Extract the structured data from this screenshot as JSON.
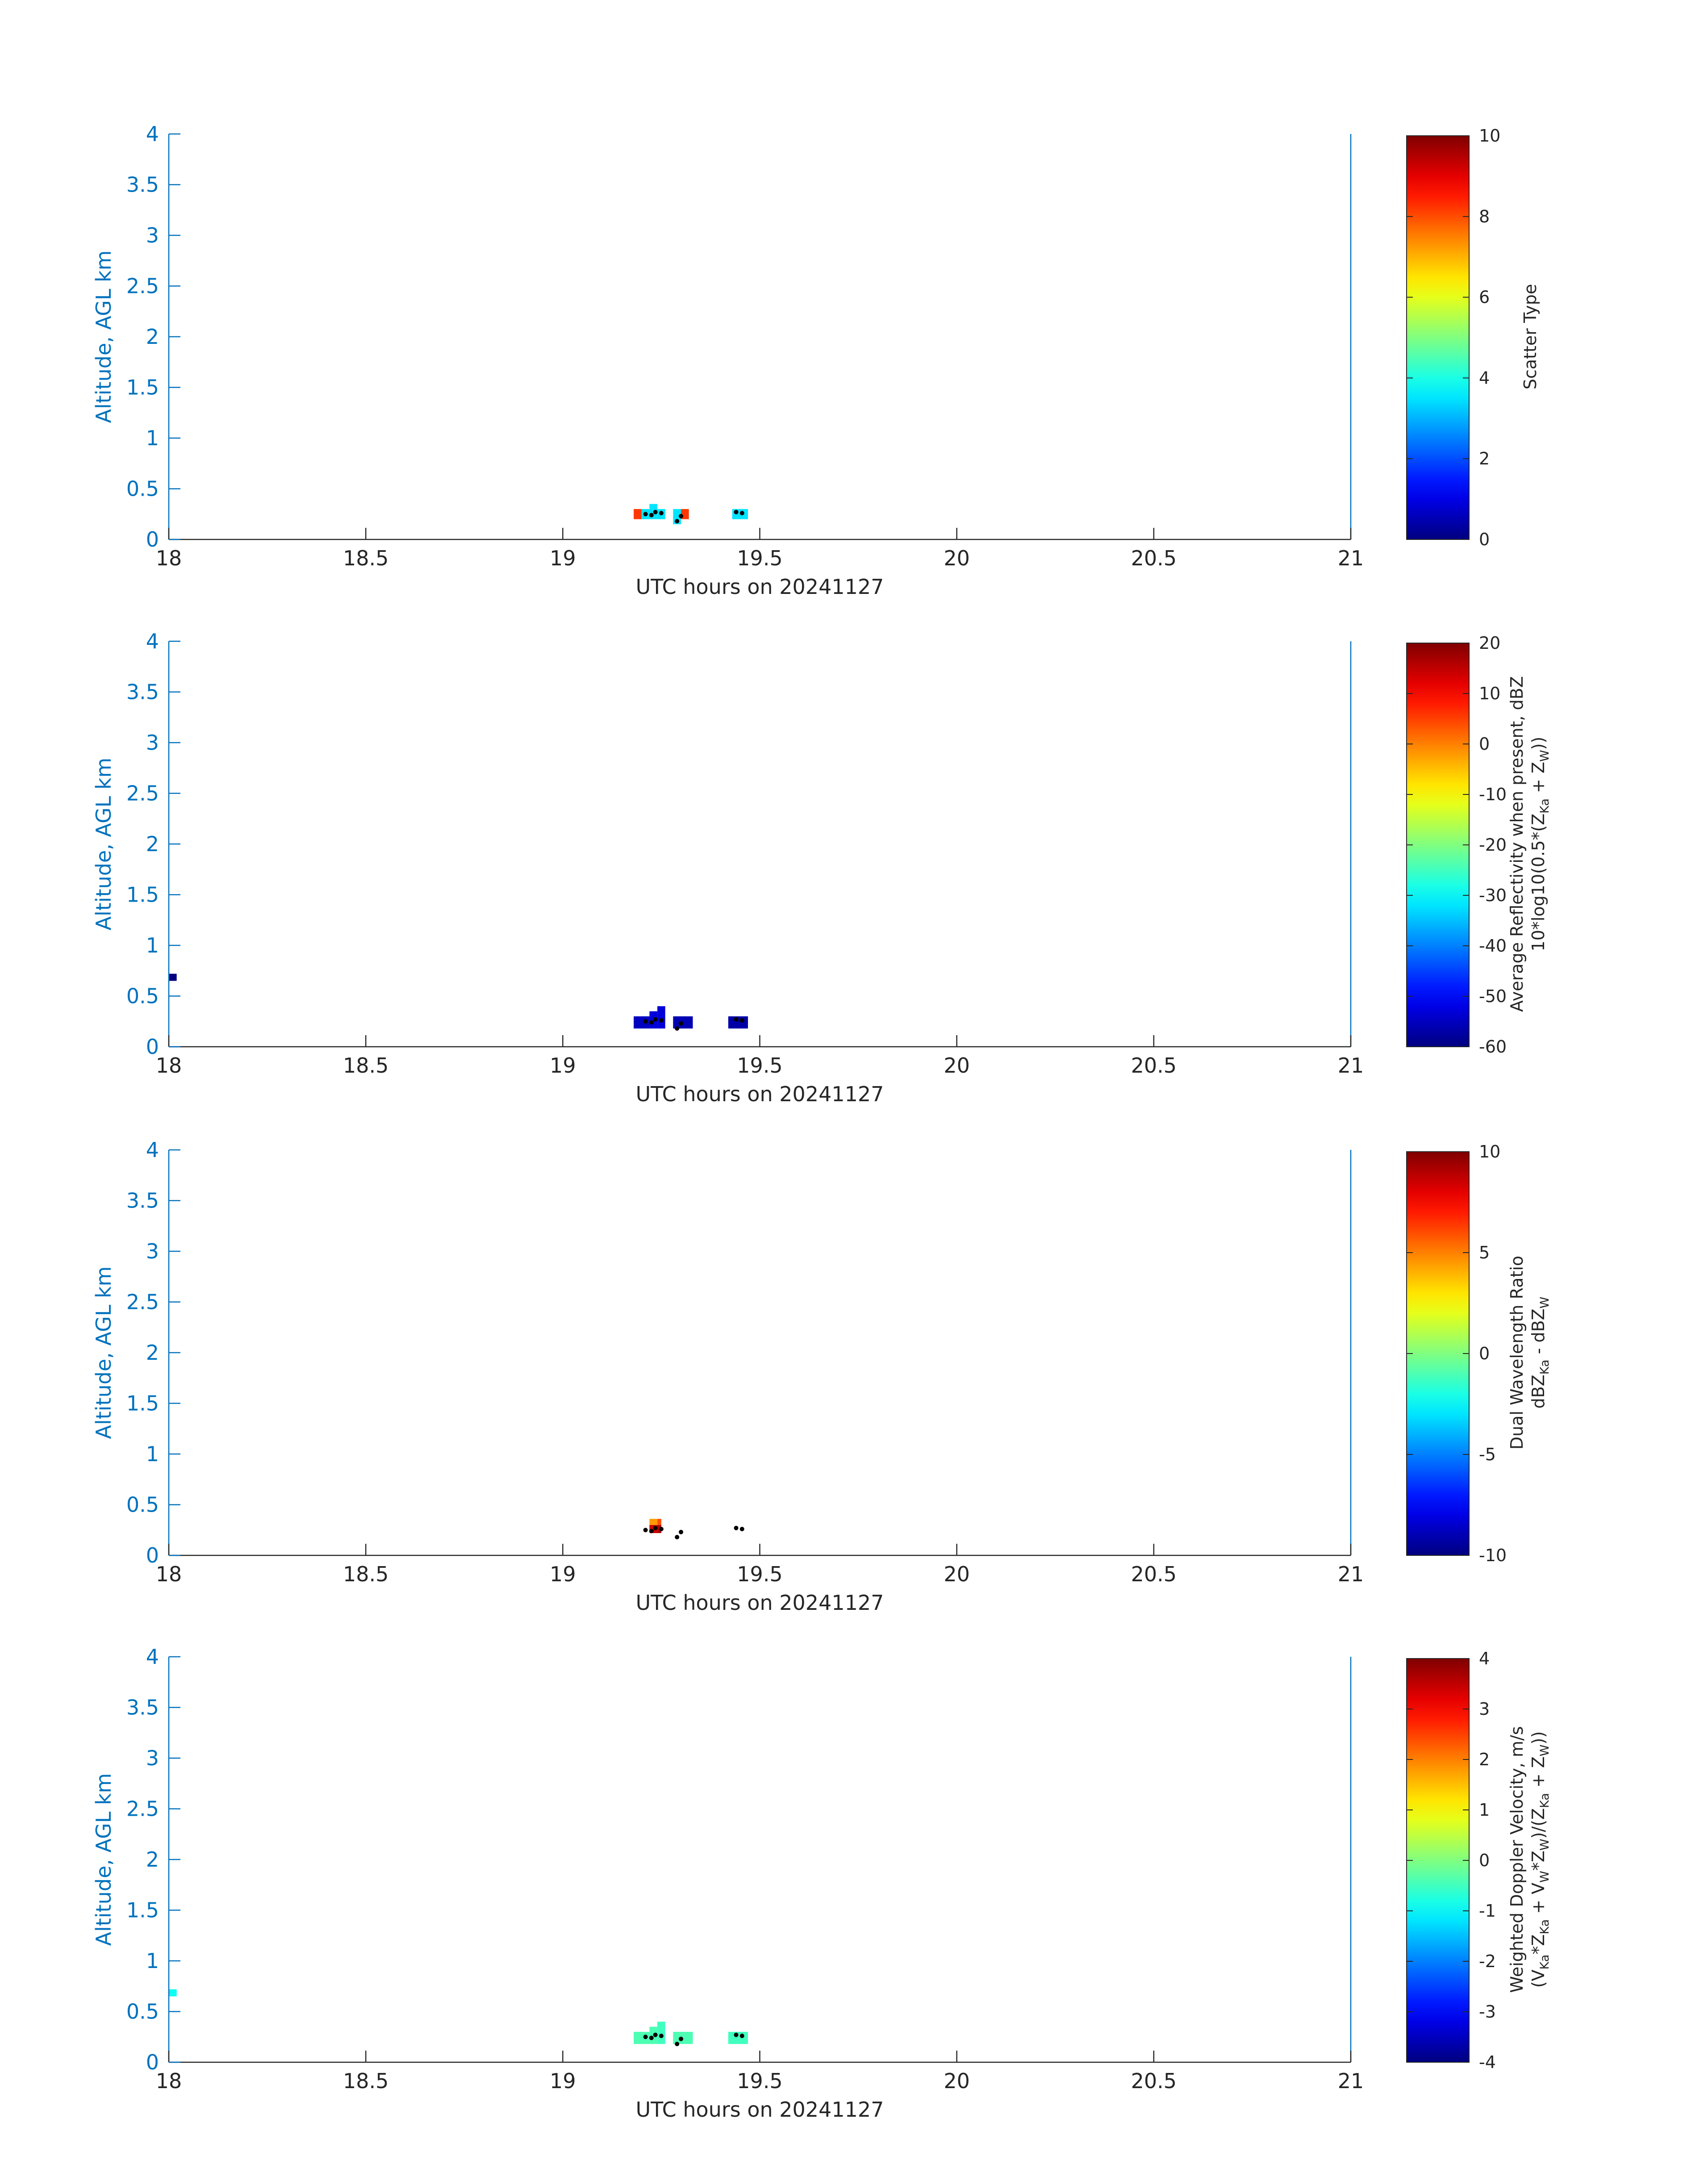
{
  "colors": {
    "axis": "#0072BD",
    "text": "#262626",
    "cbar_edge": "#262626",
    "marker": "#000000"
  },
  "colormap": "jet",
  "chart_data": [
    {
      "type": "heatmap",
      "panel": 1,
      "xlabel": "UTC hours on 20241127",
      "ylabel": "Altitude, AGL km",
      "xlim": [
        18,
        21
      ],
      "ylim": [
        0,
        4
      ],
      "xticks": [
        18,
        18.5,
        19,
        19.5,
        20,
        20.5,
        21
      ],
      "xtick_labels": [
        "18",
        "18.5",
        "19",
        "19.5",
        "20",
        "20.5",
        "21"
      ],
      "yticks": [
        0,
        0.5,
        1,
        1.5,
        2,
        2.5,
        3,
        3.5,
        4
      ],
      "ytick_labels": [
        "0",
        "0.5",
        "1",
        "1.5",
        "2",
        "2.5",
        "3",
        "3.5",
        "4"
      ],
      "colorbar": {
        "label_lines": [
          "Scatter Type"
        ],
        "clim": [
          0,
          10
        ],
        "ticks": [
          0,
          2,
          4,
          6,
          8,
          10
        ],
        "tick_labels": [
          "0",
          "2",
          "4",
          "6",
          "8",
          "10"
        ]
      },
      "cells": [
        {
          "x0": 19.18,
          "x1": 19.2,
          "y0": 0.2,
          "y1": 0.3,
          "v": 8.2
        },
        {
          "x0": 19.2,
          "x1": 19.22,
          "y0": 0.2,
          "y1": 0.3,
          "v": 3.5
        },
        {
          "x0": 19.22,
          "x1": 19.24,
          "y0": 0.2,
          "y1": 0.35,
          "v": 3.5
        },
        {
          "x0": 19.24,
          "x1": 19.26,
          "y0": 0.2,
          "y1": 0.3,
          "v": 3.5
        },
        {
          "x0": 19.28,
          "x1": 19.3,
          "y0": 0.15,
          "y1": 0.3,
          "v": 3.5
        },
        {
          "x0": 19.3,
          "x1": 19.32,
          "y0": 0.2,
          "y1": 0.3,
          "v": 8.2
        },
        {
          "x0": 19.43,
          "x1": 19.47,
          "y0": 0.2,
          "y1": 0.3,
          "v": 3.5
        }
      ],
      "markers": [
        {
          "x": 19.21,
          "y": 0.25
        },
        {
          "x": 19.225,
          "y": 0.24
        },
        {
          "x": 19.235,
          "y": 0.27
        },
        {
          "x": 19.25,
          "y": 0.26
        },
        {
          "x": 19.29,
          "y": 0.18
        },
        {
          "x": 19.3,
          "y": 0.23
        },
        {
          "x": 19.44,
          "y": 0.27
        },
        {
          "x": 19.455,
          "y": 0.26
        }
      ]
    },
    {
      "type": "heatmap",
      "panel": 2,
      "xlabel": "UTC hours on 20241127",
      "ylabel": "Altitude, AGL km",
      "xlim": [
        18,
        21
      ],
      "ylim": [
        0,
        4
      ],
      "xticks": [
        18,
        18.5,
        19,
        19.5,
        20,
        20.5,
        21
      ],
      "xtick_labels": [
        "18",
        "18.5",
        "19",
        "19.5",
        "20",
        "20.5",
        "21"
      ],
      "yticks": [
        0,
        0.5,
        1,
        1.5,
        2,
        2.5,
        3,
        3.5,
        4
      ],
      "ytick_labels": [
        "0",
        "0.5",
        "1",
        "1.5",
        "2",
        "2.5",
        "3",
        "3.5",
        "4"
      ],
      "colorbar": {
        "label_lines": [
          "Average Reflectivity when present, dBZ",
          "10*log10(0.5*(Z_Ka + Z_W))"
        ],
        "clim": [
          -60,
          20
        ],
        "ticks": [
          -60,
          -50,
          -40,
          -30,
          -20,
          -10,
          0,
          10,
          20
        ],
        "tick_labels": [
          "-60",
          "-50",
          "-40",
          "-30",
          "-20",
          "-10",
          "0",
          "10",
          "20"
        ]
      },
      "cells": [
        {
          "x0": 18.0,
          "x1": 18.02,
          "y0": 0.65,
          "y1": 0.72,
          "v": -60
        },
        {
          "x0": 19.18,
          "x1": 19.22,
          "y0": 0.18,
          "y1": 0.3,
          "v": -55
        },
        {
          "x0": 19.22,
          "x1": 19.24,
          "y0": 0.18,
          "y1": 0.35,
          "v": -53
        },
        {
          "x0": 19.24,
          "x1": 19.26,
          "y0": 0.18,
          "y1": 0.4,
          "v": -53
        },
        {
          "x0": 19.28,
          "x1": 19.33,
          "y0": 0.18,
          "y1": 0.3,
          "v": -56
        },
        {
          "x0": 19.42,
          "x1": 19.47,
          "y0": 0.18,
          "y1": 0.3,
          "v": -57
        }
      ],
      "markers": [
        {
          "x": 19.21,
          "y": 0.25
        },
        {
          "x": 19.225,
          "y": 0.24
        },
        {
          "x": 19.235,
          "y": 0.27
        },
        {
          "x": 19.25,
          "y": 0.26
        },
        {
          "x": 19.29,
          "y": 0.18
        },
        {
          "x": 19.3,
          "y": 0.23
        },
        {
          "x": 19.44,
          "y": 0.27
        },
        {
          "x": 19.455,
          "y": 0.26
        }
      ]
    },
    {
      "type": "heatmap",
      "panel": 3,
      "xlabel": "UTC hours on 20241127",
      "ylabel": "Altitude, AGL km",
      "xlim": [
        18,
        21
      ],
      "ylim": [
        0,
        4
      ],
      "xticks": [
        18,
        18.5,
        19,
        19.5,
        20,
        20.5,
        21
      ],
      "xtick_labels": [
        "18",
        "18.5",
        "19",
        "19.5",
        "20",
        "20.5",
        "21"
      ],
      "yticks": [
        0,
        0.5,
        1,
        1.5,
        2,
        2.5,
        3,
        3.5,
        4
      ],
      "ytick_labels": [
        "0",
        "0.5",
        "1",
        "1.5",
        "2",
        "2.5",
        "3",
        "3.5",
        "4"
      ],
      "colorbar": {
        "label_lines": [
          "Dual Wavelength Ratio",
          "dBZ_Ka - dBZ_W"
        ],
        "clim": [
          -10,
          10
        ],
        "ticks": [
          -10,
          -5,
          0,
          5,
          10
        ],
        "tick_labels": [
          "-10",
          "-5",
          "0",
          "5",
          "10"
        ]
      },
      "cells": [
        {
          "x0": 19.22,
          "x1": 19.24,
          "y0": 0.22,
          "y1": 0.3,
          "v": 8.5
        },
        {
          "x0": 19.22,
          "x1": 19.24,
          "y0": 0.3,
          "y1": 0.36,
          "v": 4.5
        },
        {
          "x0": 19.24,
          "x1": 19.25,
          "y0": 0.22,
          "y1": 0.3,
          "v": 9.0
        },
        {
          "x0": 19.24,
          "x1": 19.25,
          "y0": 0.3,
          "y1": 0.36,
          "v": 6.0
        }
      ],
      "markers": [
        {
          "x": 19.21,
          "y": 0.25
        },
        {
          "x": 19.225,
          "y": 0.24
        },
        {
          "x": 19.235,
          "y": 0.27
        },
        {
          "x": 19.25,
          "y": 0.26
        },
        {
          "x": 19.29,
          "y": 0.18
        },
        {
          "x": 19.3,
          "y": 0.23
        },
        {
          "x": 19.44,
          "y": 0.27
        },
        {
          "x": 19.455,
          "y": 0.26
        }
      ]
    },
    {
      "type": "heatmap",
      "panel": 4,
      "xlabel": "UTC hours on 20241127",
      "ylabel": "Altitude, AGL km",
      "xlim": [
        18,
        21
      ],
      "ylim": [
        0,
        4
      ],
      "xticks": [
        18,
        18.5,
        19,
        19.5,
        20,
        20.5,
        21
      ],
      "xtick_labels": [
        "18",
        "18.5",
        "19",
        "19.5",
        "20",
        "20.5",
        "21"
      ],
      "yticks": [
        0,
        0.5,
        1,
        1.5,
        2,
        2.5,
        3,
        3.5,
        4
      ],
      "ytick_labels": [
        "0",
        "0.5",
        "1",
        "1.5",
        "2",
        "2.5",
        "3",
        "3.5",
        "4"
      ],
      "colorbar": {
        "label_lines": [
          "Weighted Doppler Velocity, m/s",
          "(V_Ka*Z_Ka + V_W*Z_W)/(Z_Ka + Z_W))"
        ],
        "clim": [
          -4,
          4
        ],
        "ticks": [
          -4,
          -3,
          -2,
          -1,
          0,
          1,
          2,
          3,
          4
        ],
        "tick_labels": [
          "-4",
          "-3",
          "-2",
          "-1",
          "0",
          "1",
          "2",
          "3",
          "4"
        ]
      },
      "cells": [
        {
          "x0": 18.0,
          "x1": 18.02,
          "y0": 0.65,
          "y1": 0.72,
          "v": -0.9
        },
        {
          "x0": 19.18,
          "x1": 19.22,
          "y0": 0.18,
          "y1": 0.3,
          "v": -0.4
        },
        {
          "x0": 19.22,
          "x1": 19.24,
          "y0": 0.18,
          "y1": 0.35,
          "v": -0.4
        },
        {
          "x0": 19.24,
          "x1": 19.26,
          "y0": 0.18,
          "y1": 0.4,
          "v": -0.5
        },
        {
          "x0": 19.28,
          "x1": 19.33,
          "y0": 0.18,
          "y1": 0.3,
          "v": -0.4
        },
        {
          "x0": 19.42,
          "x1": 19.47,
          "y0": 0.18,
          "y1": 0.3,
          "v": -0.5
        }
      ],
      "markers": [
        {
          "x": 19.21,
          "y": 0.25
        },
        {
          "x": 19.225,
          "y": 0.24
        },
        {
          "x": 19.235,
          "y": 0.27
        },
        {
          "x": 19.25,
          "y": 0.26
        },
        {
          "x": 19.29,
          "y": 0.18
        },
        {
          "x": 19.3,
          "y": 0.23
        },
        {
          "x": 19.44,
          "y": 0.27
        },
        {
          "x": 19.455,
          "y": 0.26
        }
      ]
    }
  ]
}
